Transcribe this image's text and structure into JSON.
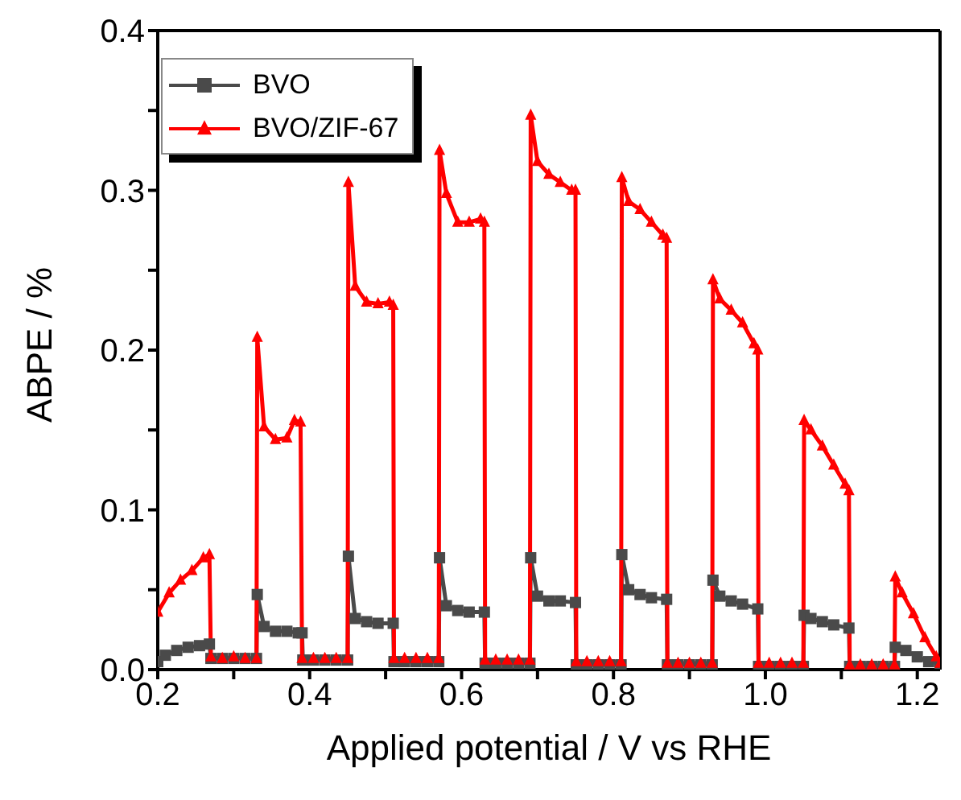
{
  "chart_data": {
    "type": "line",
    "xlabel": "Applied potential / V vs RHE",
    "ylabel": "ABPE / %",
    "xlim": [
      0.2,
      1.23
    ],
    "ylim": [
      0,
      0.4
    ],
    "xticks": [
      0.2,
      {
        "value": 0.3,
        "label": null
      },
      0.4,
      {
        "value": 0.5,
        "label": null
      },
      0.6,
      {
        "value": 0.7,
        "label": null
      },
      0.8,
      {
        "value": 0.9,
        "label": null
      },
      {
        "value": 1.0,
        "label": "1.0"
      },
      {
        "value": 1.1,
        "label": null
      },
      1.2
    ],
    "yticks": [
      {
        "value": 0,
        "label": "0.0"
      },
      {
        "value": 0.05,
        "label": null
      },
      0.1,
      {
        "value": 0.15,
        "label": null
      },
      0.2,
      {
        "value": 0.25,
        "label": null
      },
      0.3,
      {
        "value": 0.35,
        "label": null
      },
      0.4
    ],
    "grid": false,
    "legend": "top left",
    "line_style": "solid",
    "series": [
      {
        "name": "BVO",
        "color": "#4a4a4a",
        "marker": "square",
        "x": [
          0.2,
          0.21,
          0.225,
          0.24,
          0.255,
          0.268,
          0.27,
          0.285,
          0.3,
          0.315,
          0.33,
          0.331,
          0.34,
          0.355,
          0.37,
          0.385,
          0.39,
          0.391,
          0.405,
          0.42,
          0.435,
          0.45,
          0.451,
          0.46,
          0.475,
          0.49,
          0.51,
          0.511,
          0.525,
          0.54,
          0.555,
          0.57,
          0.571,
          0.58,
          0.595,
          0.61,
          0.63,
          0.631,
          0.645,
          0.66,
          0.675,
          0.69,
          0.691,
          0.7,
          0.715,
          0.73,
          0.75,
          0.751,
          0.765,
          0.78,
          0.795,
          0.81,
          0.811,
          0.82,
          0.835,
          0.85,
          0.87,
          0.871,
          0.885,
          0.9,
          0.915,
          0.93,
          0.931,
          0.94,
          0.955,
          0.97,
          0.99,
          0.991,
          1.005,
          1.02,
          1.035,
          1.05,
          1.051,
          1.06,
          1.075,
          1.09,
          1.11,
          1.111,
          1.125,
          1.14,
          1.155,
          1.17,
          1.171,
          1.185,
          1.2,
          1.215,
          1.23
        ],
        "values": [
          0.005,
          0.009,
          0.012,
          0.014,
          0.015,
          0.016,
          0.007,
          0.007,
          0.007,
          0.007,
          0.007,
          0.047,
          0.027,
          0.024,
          0.024,
          0.023,
          0.023,
          0.006,
          0.006,
          0.006,
          0.006,
          0.006,
          0.071,
          0.032,
          0.03,
          0.029,
          0.029,
          0.005,
          0.005,
          0.005,
          0.005,
          0.005,
          0.07,
          0.04,
          0.037,
          0.036,
          0.036,
          0.004,
          0.004,
          0.004,
          0.004,
          0.004,
          0.07,
          0.046,
          0.043,
          0.043,
          0.042,
          0.003,
          0.003,
          0.003,
          0.003,
          0.003,
          0.072,
          0.05,
          0.047,
          0.045,
          0.044,
          0.003,
          0.003,
          0.003,
          0.003,
          0.003,
          0.056,
          0.046,
          0.043,
          0.041,
          0.038,
          0.002,
          0.002,
          0.002,
          0.002,
          0.002,
          0.034,
          0.032,
          0.03,
          0.028,
          0.026,
          0.002,
          0.002,
          0.002,
          0.002,
          0.002,
          0.014,
          0.012,
          0.008,
          0.005,
          0.004
        ]
      },
      {
        "name": "BVO/ZIF-67",
        "color": "#ff0000",
        "marker": "triangle",
        "x": [
          0.2,
          0.215,
          0.23,
          0.245,
          0.26,
          0.268,
          0.27,
          0.285,
          0.3,
          0.315,
          0.33,
          0.331,
          0.34,
          0.355,
          0.37,
          0.38,
          0.388,
          0.39,
          0.405,
          0.42,
          0.435,
          0.45,
          0.451,
          0.46,
          0.475,
          0.49,
          0.505,
          0.51,
          0.511,
          0.525,
          0.54,
          0.555,
          0.57,
          0.571,
          0.58,
          0.595,
          0.61,
          0.625,
          0.63,
          0.631,
          0.645,
          0.66,
          0.675,
          0.69,
          0.691,
          0.7,
          0.715,
          0.73,
          0.745,
          0.75,
          0.751,
          0.765,
          0.78,
          0.795,
          0.81,
          0.811,
          0.82,
          0.835,
          0.85,
          0.865,
          0.87,
          0.871,
          0.885,
          0.9,
          0.915,
          0.93,
          0.931,
          0.94,
          0.955,
          0.97,
          0.985,
          0.99,
          0.991,
          1.005,
          1.02,
          1.035,
          1.05,
          1.051,
          1.06,
          1.075,
          1.09,
          1.105,
          1.11,
          1.111,
          1.125,
          1.14,
          1.155,
          1.17,
          1.171,
          1.18,
          1.195,
          1.21,
          1.225,
          1.23
        ],
        "values": [
          0.036,
          0.048,
          0.056,
          0.062,
          0.07,
          0.072,
          0.008,
          0.007,
          0.008,
          0.007,
          0.007,
          0.208,
          0.152,
          0.144,
          0.145,
          0.156,
          0.155,
          0.007,
          0.007,
          0.007,
          0.007,
          0.007,
          0.305,
          0.24,
          0.23,
          0.229,
          0.23,
          0.228,
          0.007,
          0.007,
          0.007,
          0.007,
          0.007,
          0.325,
          0.298,
          0.28,
          0.28,
          0.282,
          0.28,
          0.006,
          0.006,
          0.006,
          0.006,
          0.006,
          0.347,
          0.318,
          0.31,
          0.305,
          0.3,
          0.3,
          0.005,
          0.005,
          0.005,
          0.005,
          0.005,
          0.308,
          0.293,
          0.288,
          0.28,
          0.272,
          0.27,
          0.004,
          0.004,
          0.004,
          0.004,
          0.004,
          0.244,
          0.232,
          0.225,
          0.217,
          0.204,
          0.2,
          0.004,
          0.004,
          0.004,
          0.004,
          0.004,
          0.156,
          0.15,
          0.14,
          0.128,
          0.116,
          0.112,
          0.003,
          0.003,
          0.003,
          0.003,
          0.003,
          0.058,
          0.048,
          0.035,
          0.02,
          0.008,
          0.004
        ]
      }
    ]
  }
}
